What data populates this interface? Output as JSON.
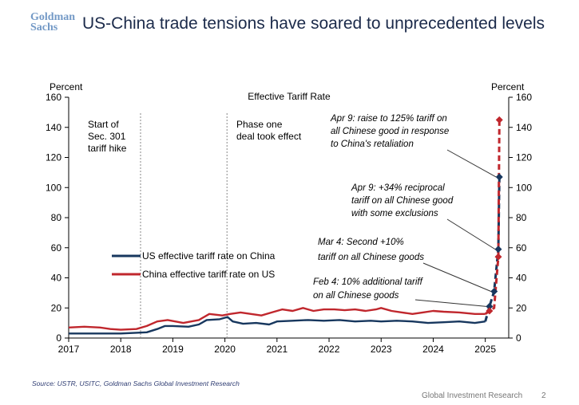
{
  "header": {
    "logo_line1": "Goldman",
    "logo_line2": "Sachs",
    "title": "US-China trade tensions have soared to unprecedented levels"
  },
  "footer": {
    "source": "Source: USTR, USITC, Goldman Sachs Global Investment Research",
    "brand": "Global Investment Research",
    "page": "2"
  },
  "colors": {
    "us_series": "#17375e",
    "china_series": "#c0272d",
    "vline": "#888888"
  },
  "chart_data": {
    "type": "line",
    "title": "Effective Tariff Rate",
    "ylabel_left": "Percent",
    "ylabel_right": "Percent",
    "ylim": [
      0,
      160
    ],
    "yticks": [
      0,
      20,
      40,
      60,
      80,
      100,
      120,
      140,
      160
    ],
    "xlim": [
      2017,
      2025.45
    ],
    "xticks": [
      2017,
      2018,
      2019,
      2020,
      2021,
      2022,
      2023,
      2024,
      2025
    ],
    "series": [
      {
        "name": "US effective tariff rate on China",
        "color": "#17375e",
        "points": [
          [
            2017.0,
            3
          ],
          [
            2017.5,
            3
          ],
          [
            2018.0,
            3
          ],
          [
            2018.5,
            3.8
          ],
          [
            2018.7,
            6
          ],
          [
            2018.85,
            8
          ],
          [
            2019.0,
            8
          ],
          [
            2019.3,
            7.5
          ],
          [
            2019.5,
            9
          ],
          [
            2019.65,
            12
          ],
          [
            2019.9,
            12.5
          ],
          [
            2020.05,
            14
          ],
          [
            2020.15,
            11
          ],
          [
            2020.35,
            9.5
          ],
          [
            2020.6,
            10
          ],
          [
            2020.85,
            9
          ],
          [
            2021.0,
            11
          ],
          [
            2021.3,
            11.5
          ],
          [
            2021.6,
            12
          ],
          [
            2021.9,
            11.5
          ],
          [
            2022.2,
            12
          ],
          [
            2022.5,
            11
          ],
          [
            2022.8,
            11.5
          ],
          [
            2023.0,
            11
          ],
          [
            2023.3,
            11.5
          ],
          [
            2023.6,
            11
          ],
          [
            2023.9,
            10
          ],
          [
            2024.2,
            10.5
          ],
          [
            2024.5,
            11
          ],
          [
            2024.8,
            10
          ],
          [
            2025.0,
            11
          ],
          [
            2025.08,
            21
          ],
          [
            2025.17,
            31
          ],
          [
            2025.25,
            59
          ],
          [
            2025.27,
            107
          ]
        ]
      },
      {
        "name": "China effective tariff rate on US",
        "color": "#c0272d",
        "points": [
          [
            2017.0,
            7
          ],
          [
            2017.3,
            7.5
          ],
          [
            2017.6,
            7
          ],
          [
            2017.8,
            6
          ],
          [
            2018.0,
            5.5
          ],
          [
            2018.3,
            6
          ],
          [
            2018.5,
            8
          ],
          [
            2018.7,
            11
          ],
          [
            2018.9,
            12
          ],
          [
            2019.2,
            10
          ],
          [
            2019.5,
            12
          ],
          [
            2019.7,
            16
          ],
          [
            2019.95,
            15
          ],
          [
            2020.1,
            16
          ],
          [
            2020.3,
            17
          ],
          [
            2020.5,
            16
          ],
          [
            2020.7,
            15
          ],
          [
            2020.9,
            17
          ],
          [
            2021.1,
            19
          ],
          [
            2021.3,
            18
          ],
          [
            2021.5,
            20
          ],
          [
            2021.7,
            18
          ],
          [
            2021.9,
            19
          ],
          [
            2022.1,
            19
          ],
          [
            2022.3,
            18.5
          ],
          [
            2022.5,
            19
          ],
          [
            2022.7,
            18
          ],
          [
            2022.9,
            19
          ],
          [
            2023.0,
            20
          ],
          [
            2023.2,
            18
          ],
          [
            2023.4,
            17
          ],
          [
            2023.6,
            16
          ],
          [
            2023.8,
            17
          ],
          [
            2024.0,
            18
          ],
          [
            2024.2,
            17.5
          ],
          [
            2024.5,
            17
          ],
          [
            2024.8,
            16
          ],
          [
            2025.0,
            16
          ],
          [
            2025.08,
            18
          ],
          [
            2025.17,
            20
          ],
          [
            2025.25,
            54
          ],
          [
            2025.27,
            145
          ]
        ]
      }
    ],
    "markers": [
      {
        "x": 2025.08,
        "y": 21,
        "series": 0
      },
      {
        "x": 2025.17,
        "y": 31,
        "series": 0
      },
      {
        "x": 2025.25,
        "y": 59,
        "series": 0
      },
      {
        "x": 2025.27,
        "y": 107,
        "series": 0
      },
      {
        "x": 2025.08,
        "y": 18,
        "series": 1
      },
      {
        "x": 2025.25,
        "y": 54,
        "series": 1
      },
      {
        "x": 2025.27,
        "y": 145,
        "series": 1
      }
    ],
    "vlines": [
      {
        "x": 2018.38,
        "label": [
          "Start of",
          "Sec. 301",
          "tariff hike"
        ]
      },
      {
        "x": 2020.04,
        "label": [
          "Phase one",
          "deal took effect"
        ]
      }
    ],
    "annotations": [
      {
        "lines": [
          "Apr 9: raise to 125% tariff on",
          "all Chinese good in response",
          "to China's retaliation"
        ],
        "target": [
          2025.27,
          107
        ]
      },
      {
        "lines": [
          "Apr 9: +34% reciprocal",
          "tariff on all Chinese good",
          "with some exclusions"
        ],
        "target": [
          2025.25,
          59
        ]
      },
      {
        "lines": [
          "Mar 4: Second +10%",
          "tariff on all Chinese goods"
        ],
        "target": [
          2025.17,
          31
        ]
      },
      {
        "lines": [
          "Feb 4: 10% additional tariff",
          "on all Chinese goods"
        ],
        "target": [
          2025.08,
          21
        ]
      }
    ]
  }
}
